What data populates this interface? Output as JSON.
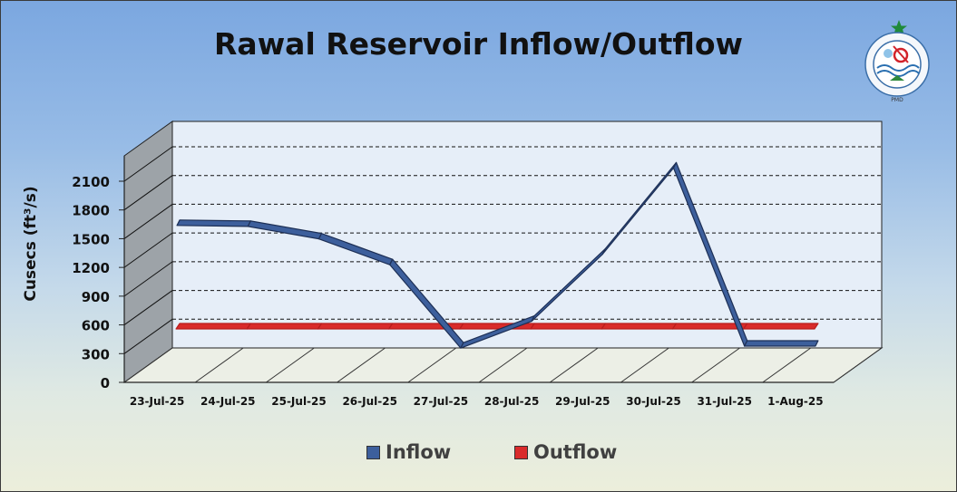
{
  "title": "Rawal Reservoir Inflow/Outflow",
  "logo": {
    "icon": "pakistan-meteorological-department-logo",
    "text": "PAKISTAN METEOROLOGICAL DEPARTMENT"
  },
  "colors": {
    "inflow": "#3d5f9c",
    "outflow": "#d92b2b",
    "back_wall": "#e6eef8",
    "side_wall": "#9da3a8",
    "floor": "#ecefe6"
  },
  "chart_data": {
    "type": "line",
    "categories": [
      "23-Jul-25",
      "24-Jul-25",
      "25-Jul-25",
      "26-Jul-25",
      "27-Jul-25",
      "28-Jul-25",
      "29-Jul-25",
      "30-Jul-25",
      "31-Jul-25",
      "1-Aug-25"
    ],
    "series": [
      {
        "name": "Inflow",
        "values": [
          1430,
          1420,
          1290,
          1020,
          150,
          430,
          1130,
          2030,
          170,
          170
        ]
      },
      {
        "name": "Outflow",
        "values": [
          350,
          350,
          350,
          350,
          350,
          350,
          350,
          350,
          350,
          350
        ]
      }
    ],
    "title": "Rawal Reservoir Inflow/Outflow",
    "xlabel": "",
    "ylabel": "Cusecs (ft³/s)",
    "ylim": [
      0,
      2100
    ],
    "yticks": [
      0,
      300,
      600,
      900,
      1200,
      1500,
      1800,
      2100
    ],
    "grid": true,
    "legend": "bottom",
    "style": "3d-line"
  }
}
